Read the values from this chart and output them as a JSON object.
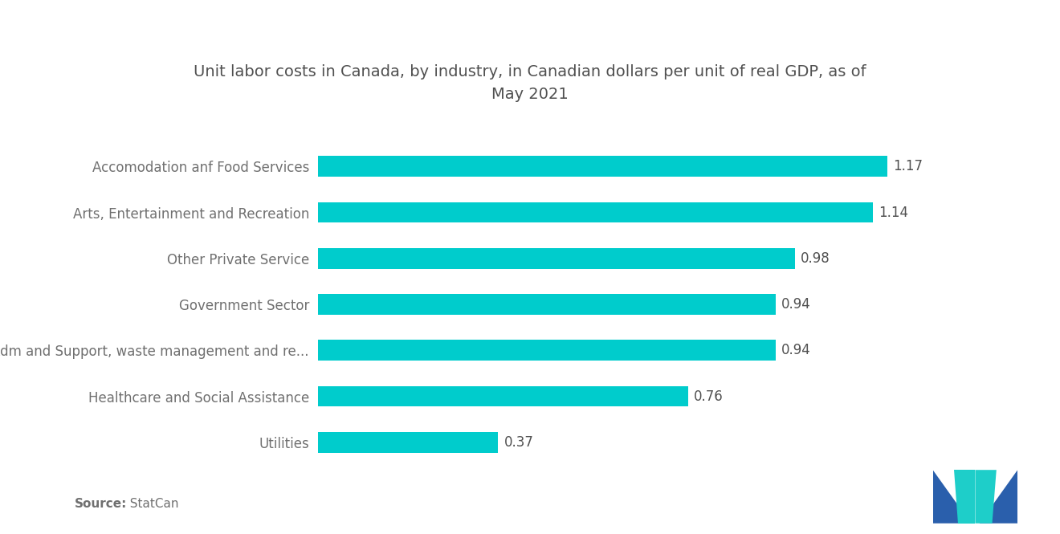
{
  "title": "Unit labor costs in Canada, by industry, in Canadian dollars per unit of real GDP, as of\nMay 2021",
  "categories": [
    "Utilities",
    "Healthcare and Social Assistance",
    "Adm and Support, waste management and re...",
    "Government Sector",
    "Other Private Service",
    "Arts, Entertainment and Recreation",
    "Accomodation anf Food Services"
  ],
  "values": [
    0.37,
    0.76,
    0.94,
    0.94,
    0.98,
    1.14,
    1.17
  ],
  "bar_color": "#00CCCC",
  "background_color": "#FFFFFF",
  "title_color": "#505050",
  "label_color": "#707070",
  "value_color": "#505050",
  "source_bold": "Source:",
  "source_normal": "  StatCan",
  "xlim": [
    0,
    1.35
  ],
  "title_fontsize": 14,
  "label_fontsize": 12,
  "value_fontsize": 12,
  "source_fontsize": 11,
  "bar_height": 0.45,
  "logo_color_dark": "#2A5FAC",
  "logo_color_teal": "#1ECEC9"
}
